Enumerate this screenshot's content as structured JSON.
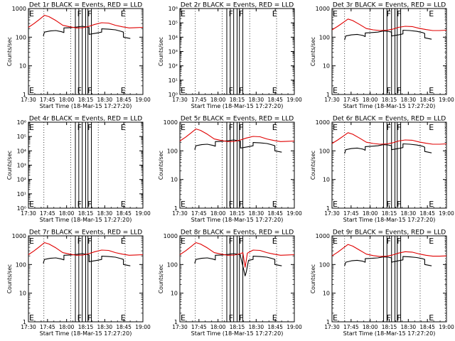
{
  "figure": {
    "x_ticks": [
      "17:30",
      "17:45",
      "18:00",
      "18:15",
      "18:30",
      "18:45",
      "19:00"
    ],
    "x_label": "Start Time (18-Mar-15 17:27:20)",
    "y_label": "Counts/sec",
    "colors": {
      "events": "#000000",
      "lld": "#e00000",
      "axes": "#000000"
    }
  },
  "chart_data": [
    {
      "type": "line",
      "title": "Det 1r BLACK = Events, RED = LLD",
      "yscale": "log",
      "ylim": [
        1,
        1000
      ],
      "yticks": [
        "1",
        "10",
        "100",
        "1000"
      ],
      "xlim": [
        0,
        100
      ],
      "markers": [
        {
          "label": "E",
          "x": 0
        },
        {
          "label": "F",
          "x": 42
        },
        {
          "label": "F",
          "x": 51
        },
        {
          "label": "E",
          "x": 80
        }
      ],
      "dotted_x": [
        13.5,
        37,
        61,
        84.5
      ],
      "bands": [
        [
          41,
          44
        ],
        [
          47,
          50
        ],
        [
          52,
          55
        ]
      ],
      "series": [
        {
          "color": "black",
          "x": [
            13,
            14,
            19,
            24,
            29,
            31,
            31,
            37,
            42,
            47,
            51,
            53,
            53,
            60,
            64,
            64,
            70,
            76,
            81,
            83,
            83,
            89
          ],
          "y": [
            110,
            150,
            165,
            170,
            155,
            145,
            210,
            215,
            225,
            240,
            225,
            215,
            125,
            140,
            150,
            195,
            190,
            180,
            160,
            150,
            100,
            90
          ]
        },
        {
          "color": "red",
          "x": [
            0,
            5,
            10,
            14,
            18,
            24,
            30,
            36,
            42,
            48,
            53,
            58,
            64,
            70,
            76,
            82,
            88,
            94,
            100
          ],
          "y": [
            220,
            300,
            430,
            580,
            520,
            380,
            260,
            230,
            210,
            215,
            240,
            280,
            320,
            310,
            260,
            230,
            210,
            215,
            220
          ]
        }
      ]
    },
    {
      "type": "line",
      "title": "Det 2r BLACK = Events, RED = LLD",
      "yscale": "log",
      "ylim": [
        1,
        1000000
      ],
      "yticks": [
        "10⁰",
        "10¹",
        "10²",
        "10³",
        "10⁴",
        "10⁵",
        "10⁶"
      ],
      "xlim": [
        0,
        100
      ],
      "markers": [
        {
          "label": "E",
          "x": 0
        },
        {
          "label": "F",
          "x": 42
        },
        {
          "label": "F",
          "x": 51
        },
        {
          "label": "E",
          "x": 80
        }
      ],
      "dotted_x": [
        13.5,
        37,
        61,
        84.5
      ],
      "bands": [
        [
          41,
          44
        ],
        [
          47,
          50
        ],
        [
          52,
          55
        ]
      ],
      "series": []
    },
    {
      "type": "line",
      "title": "Det 3r BLACK = Events, RED = LLD",
      "yscale": "log",
      "ylim": [
        1,
        1000
      ],
      "yticks": [
        "1",
        "10",
        "100",
        "1000"
      ],
      "xlim": [
        0,
        100
      ],
      "markers": [
        {
          "label": "E",
          "x": 0
        },
        {
          "label": "F",
          "x": 47
        },
        {
          "label": "F",
          "x": 56
        },
        {
          "label": "E",
          "x": 84
        }
      ],
      "dotted_x": [
        11,
        33,
        55,
        77,
        99
      ],
      "bands": [
        [
          45,
          48
        ],
        [
          52,
          55
        ],
        [
          57,
          60
        ]
      ],
      "series": [
        {
          "color": "black",
          "x": [
            11,
            12,
            17,
            22,
            27,
            29,
            29,
            35,
            40,
            45,
            49,
            52,
            52,
            58,
            62,
            62,
            68,
            74,
            79,
            81,
            81,
            87
          ],
          "y": [
            80,
            110,
            120,
            125,
            115,
            105,
            140,
            145,
            150,
            165,
            160,
            150,
            110,
            120,
            130,
            175,
            170,
            160,
            145,
            135,
            95,
            85
          ]
        },
        {
          "color": "red",
          "x": [
            0,
            5,
            10,
            14,
            18,
            24,
            30,
            36,
            42,
            48,
            53,
            58,
            64,
            70,
            76,
            82,
            88,
            94,
            100
          ],
          "y": [
            180,
            240,
            330,
            430,
            380,
            280,
            200,
            180,
            170,
            175,
            190,
            220,
            240,
            235,
            205,
            185,
            170,
            170,
            175
          ]
        }
      ]
    },
    {
      "type": "line",
      "title": "Det 4r BLACK = Events, RED = LLD",
      "yscale": "log",
      "ylim": [
        1,
        1000000
      ],
      "yticks": [
        "10⁰",
        "10¹",
        "10²",
        "10³",
        "10⁴",
        "10⁵",
        "10⁶"
      ],
      "xlim": [
        0,
        100
      ],
      "markers": [
        {
          "label": "E",
          "x": 0
        },
        {
          "label": "F",
          "x": 42
        },
        {
          "label": "F",
          "x": 51
        },
        {
          "label": "E",
          "x": 80
        }
      ],
      "dotted_x": [
        13.5,
        37,
        61,
        84.5
      ],
      "bands": [
        [
          41,
          44
        ],
        [
          47,
          50
        ],
        [
          52,
          55
        ]
      ],
      "series": []
    },
    {
      "type": "line",
      "title": "Det 5r BLACK = Events, RED = LLD",
      "yscale": "log",
      "ylim": [
        1,
        1000
      ],
      "yticks": [
        "1",
        "10",
        "100",
        "1000"
      ],
      "xlim": [
        0,
        100
      ],
      "markers": [
        {
          "label": "E",
          "x": 0
        },
        {
          "label": "F",
          "x": 42
        },
        {
          "label": "F",
          "x": 51
        },
        {
          "label": "E",
          "x": 80
        }
      ],
      "dotted_x": [
        13.5,
        37,
        61,
        84.5
      ],
      "bands": [
        [
          41,
          44
        ],
        [
          47,
          50
        ],
        [
          52,
          55
        ]
      ],
      "series": [
        {
          "color": "black",
          "x": [
            13,
            14,
            19,
            24,
            29,
            31,
            31,
            37,
            42,
            47,
            51,
            53,
            53,
            60,
            64,
            64,
            70,
            76,
            81,
            83,
            83,
            89
          ],
          "y": [
            110,
            150,
            165,
            170,
            155,
            145,
            210,
            215,
            225,
            240,
            225,
            215,
            125,
            140,
            150,
            195,
            190,
            180,
            160,
            150,
            100,
            90
          ]
        },
        {
          "color": "red",
          "x": [
            0,
            5,
            10,
            14,
            18,
            24,
            30,
            36,
            42,
            48,
            53,
            58,
            64,
            70,
            76,
            82,
            88,
            94,
            100
          ],
          "y": [
            220,
            300,
            430,
            580,
            520,
            380,
            260,
            230,
            210,
            215,
            240,
            280,
            320,
            310,
            260,
            230,
            210,
            215,
            220
          ]
        }
      ]
    },
    {
      "type": "line",
      "title": "Det 6r BLACK = Events, RED = LLD",
      "yscale": "log",
      "ylim": [
        1,
        1000
      ],
      "yticks": [
        "1",
        "10",
        "100",
        "1000"
      ],
      "xlim": [
        0,
        100
      ],
      "markers": [
        {
          "label": "E",
          "x": 0
        },
        {
          "label": "F",
          "x": 47
        },
        {
          "label": "F",
          "x": 56
        },
        {
          "label": "E",
          "x": 84
        }
      ],
      "dotted_x": [
        11,
        33,
        55,
        77,
        99
      ],
      "bands": [
        [
          45,
          48
        ],
        [
          52,
          55
        ],
        [
          57,
          60
        ]
      ],
      "series": [
        {
          "color": "black",
          "x": [
            11,
            12,
            17,
            22,
            27,
            29,
            29,
            35,
            40,
            45,
            49,
            52,
            52,
            58,
            62,
            62,
            68,
            74,
            79,
            81,
            81,
            87
          ],
          "y": [
            80,
            110,
            120,
            125,
            115,
            105,
            140,
            145,
            150,
            165,
            160,
            150,
            110,
            120,
            130,
            175,
            170,
            160,
            145,
            135,
            95,
            85
          ]
        },
        {
          "color": "red",
          "x": [
            0,
            5,
            10,
            14,
            18,
            24,
            30,
            36,
            42,
            48,
            53,
            58,
            64,
            70,
            76,
            82,
            88,
            94,
            100
          ],
          "y": [
            180,
            240,
            330,
            430,
            380,
            280,
            200,
            180,
            170,
            175,
            190,
            220,
            240,
            235,
            205,
            185,
            170,
            170,
            175
          ]
        }
      ]
    },
    {
      "type": "line",
      "title": "Det 7r BLACK = Events, RED = LLD",
      "yscale": "log",
      "ylim": [
        1,
        1000
      ],
      "yticks": [
        "1",
        "10",
        "100",
        "1000"
      ],
      "xlim": [
        0,
        100
      ],
      "markers": [
        {
          "label": "E",
          "x": 0
        },
        {
          "label": "F",
          "x": 42
        },
        {
          "label": "F",
          "x": 51
        },
        {
          "label": "E",
          "x": 80
        }
      ],
      "dotted_x": [
        13.5,
        37,
        61,
        84.5
      ],
      "bands": [
        [
          41,
          44
        ],
        [
          47,
          50
        ],
        [
          52,
          55
        ]
      ],
      "series": [
        {
          "color": "black",
          "x": [
            13,
            14,
            19,
            24,
            29,
            31,
            31,
            37,
            42,
            47,
            51,
            53,
            53,
            60,
            64,
            64,
            70,
            76,
            81,
            83,
            83,
            89
          ],
          "y": [
            110,
            150,
            165,
            170,
            155,
            145,
            210,
            215,
            225,
            240,
            225,
            215,
            125,
            140,
            150,
            195,
            190,
            180,
            160,
            150,
            100,
            90
          ]
        },
        {
          "color": "red",
          "x": [
            0,
            5,
            10,
            14,
            18,
            24,
            30,
            36,
            42,
            48,
            53,
            58,
            64,
            70,
            76,
            82,
            88,
            94,
            100
          ],
          "y": [
            220,
            300,
            430,
            580,
            520,
            380,
            260,
            230,
            210,
            215,
            240,
            280,
            320,
            310,
            260,
            230,
            210,
            215,
            220
          ]
        }
      ]
    },
    {
      "type": "line",
      "title": "Det 8r BLACK = Events, RED = LLD",
      "yscale": "log",
      "ylim": [
        1,
        1000
      ],
      "yticks": [
        "1",
        "10",
        "100",
        "1000"
      ],
      "xlim": [
        0,
        100
      ],
      "markers": [
        {
          "label": "E",
          "x": 0
        },
        {
          "label": "F",
          "x": 42
        },
        {
          "label": "F",
          "x": 51
        },
        {
          "label": "E",
          "x": 80
        }
      ],
      "dotted_x": [
        13.5,
        37,
        61,
        84.5
      ],
      "bands": [
        [
          41,
          44
        ],
        [
          47,
          50
        ],
        [
          52,
          55
        ]
      ],
      "series": [
        {
          "color": "black",
          "x": [
            13,
            14,
            19,
            24,
            29,
            31,
            31,
            37,
            42,
            47,
            51,
            53,
            53,
            56,
            57,
            58,
            60,
            64,
            64,
            70,
            76,
            81,
            83,
            83,
            89
          ],
          "y": [
            110,
            150,
            165,
            170,
            155,
            145,
            210,
            215,
            225,
            240,
            225,
            215,
            190,
            60,
            40,
            55,
            140,
            150,
            195,
            190,
            180,
            160,
            150,
            100,
            90
          ]
        },
        {
          "color": "red",
          "x": [
            0,
            5,
            10,
            14,
            18,
            24,
            30,
            36,
            42,
            48,
            53,
            55,
            57,
            59,
            64,
            70,
            76,
            82,
            88,
            94,
            100
          ],
          "y": [
            220,
            300,
            430,
            580,
            520,
            380,
            260,
            230,
            210,
            215,
            240,
            260,
            80,
            250,
            320,
            310,
            260,
            230,
            210,
            215,
            220
          ]
        }
      ]
    },
    {
      "type": "line",
      "title": "Det 9r BLACK = Events, RED = LLD",
      "yscale": "log",
      "ylim": [
        1,
        1000
      ],
      "yticks": [
        "1",
        "10",
        "100",
        "1000"
      ],
      "xlim": [
        0,
        100
      ],
      "markers": [
        {
          "label": "E",
          "x": 0
        },
        {
          "label": "F",
          "x": 47
        },
        {
          "label": "F",
          "x": 56
        },
        {
          "label": "E",
          "x": 84
        }
      ],
      "dotted_x": [
        11,
        33,
        55,
        77,
        99
      ],
      "bands": [
        [
          45,
          48
        ],
        [
          52,
          55
        ],
        [
          57,
          60
        ]
      ],
      "series": [
        {
          "color": "black",
          "x": [
            11,
            12,
            17,
            22,
            27,
            29,
            29,
            35,
            40,
            45,
            49,
            52,
            52,
            58,
            62,
            62,
            68,
            74,
            79,
            81,
            81,
            87
          ],
          "y": [
            90,
            120,
            135,
            140,
            130,
            120,
            160,
            165,
            170,
            185,
            180,
            170,
            120,
            135,
            145,
            190,
            185,
            175,
            160,
            150,
            100,
            90
          ]
        },
        {
          "color": "red",
          "x": [
            0,
            5,
            10,
            14,
            18,
            24,
            30,
            36,
            42,
            48,
            53,
            58,
            64,
            70,
            76,
            82,
            88,
            94,
            100
          ],
          "y": [
            200,
            270,
            380,
            500,
            440,
            320,
            230,
            205,
            190,
            195,
            215,
            250,
            280,
            270,
            235,
            210,
            195,
            195,
            200
          ]
        }
      ]
    }
  ]
}
